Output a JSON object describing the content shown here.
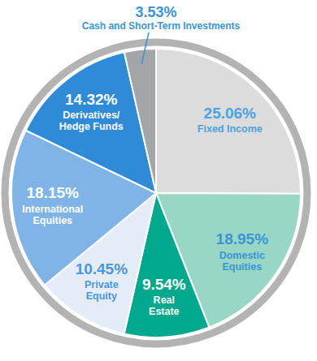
{
  "chart_data": {
    "type": "pie",
    "categories": [
      "Fixed Income",
      "Domestic\nEquities",
      "Real\nEstate",
      "Private\nEquity",
      "International\nEquities",
      "Derivatives/\nHedge Funds",
      "Cash and Short-Term Investments"
    ],
    "values": [
      25.06,
      18.95,
      9.54,
      10.45,
      18.15,
      14.32,
      3.53
    ],
    "value_labels": [
      "25.06%",
      "18.95%",
      "9.54%",
      "10.45%",
      "18.15%",
      "14.32%",
      "3.53%"
    ],
    "colors": [
      "#dcdcdc",
      "#98d6c6",
      "#00a88e",
      "#e4edf7",
      "#80b3e6",
      "#2f8ad8",
      "#a3a6a9"
    ],
    "data_labels": true
  }
}
